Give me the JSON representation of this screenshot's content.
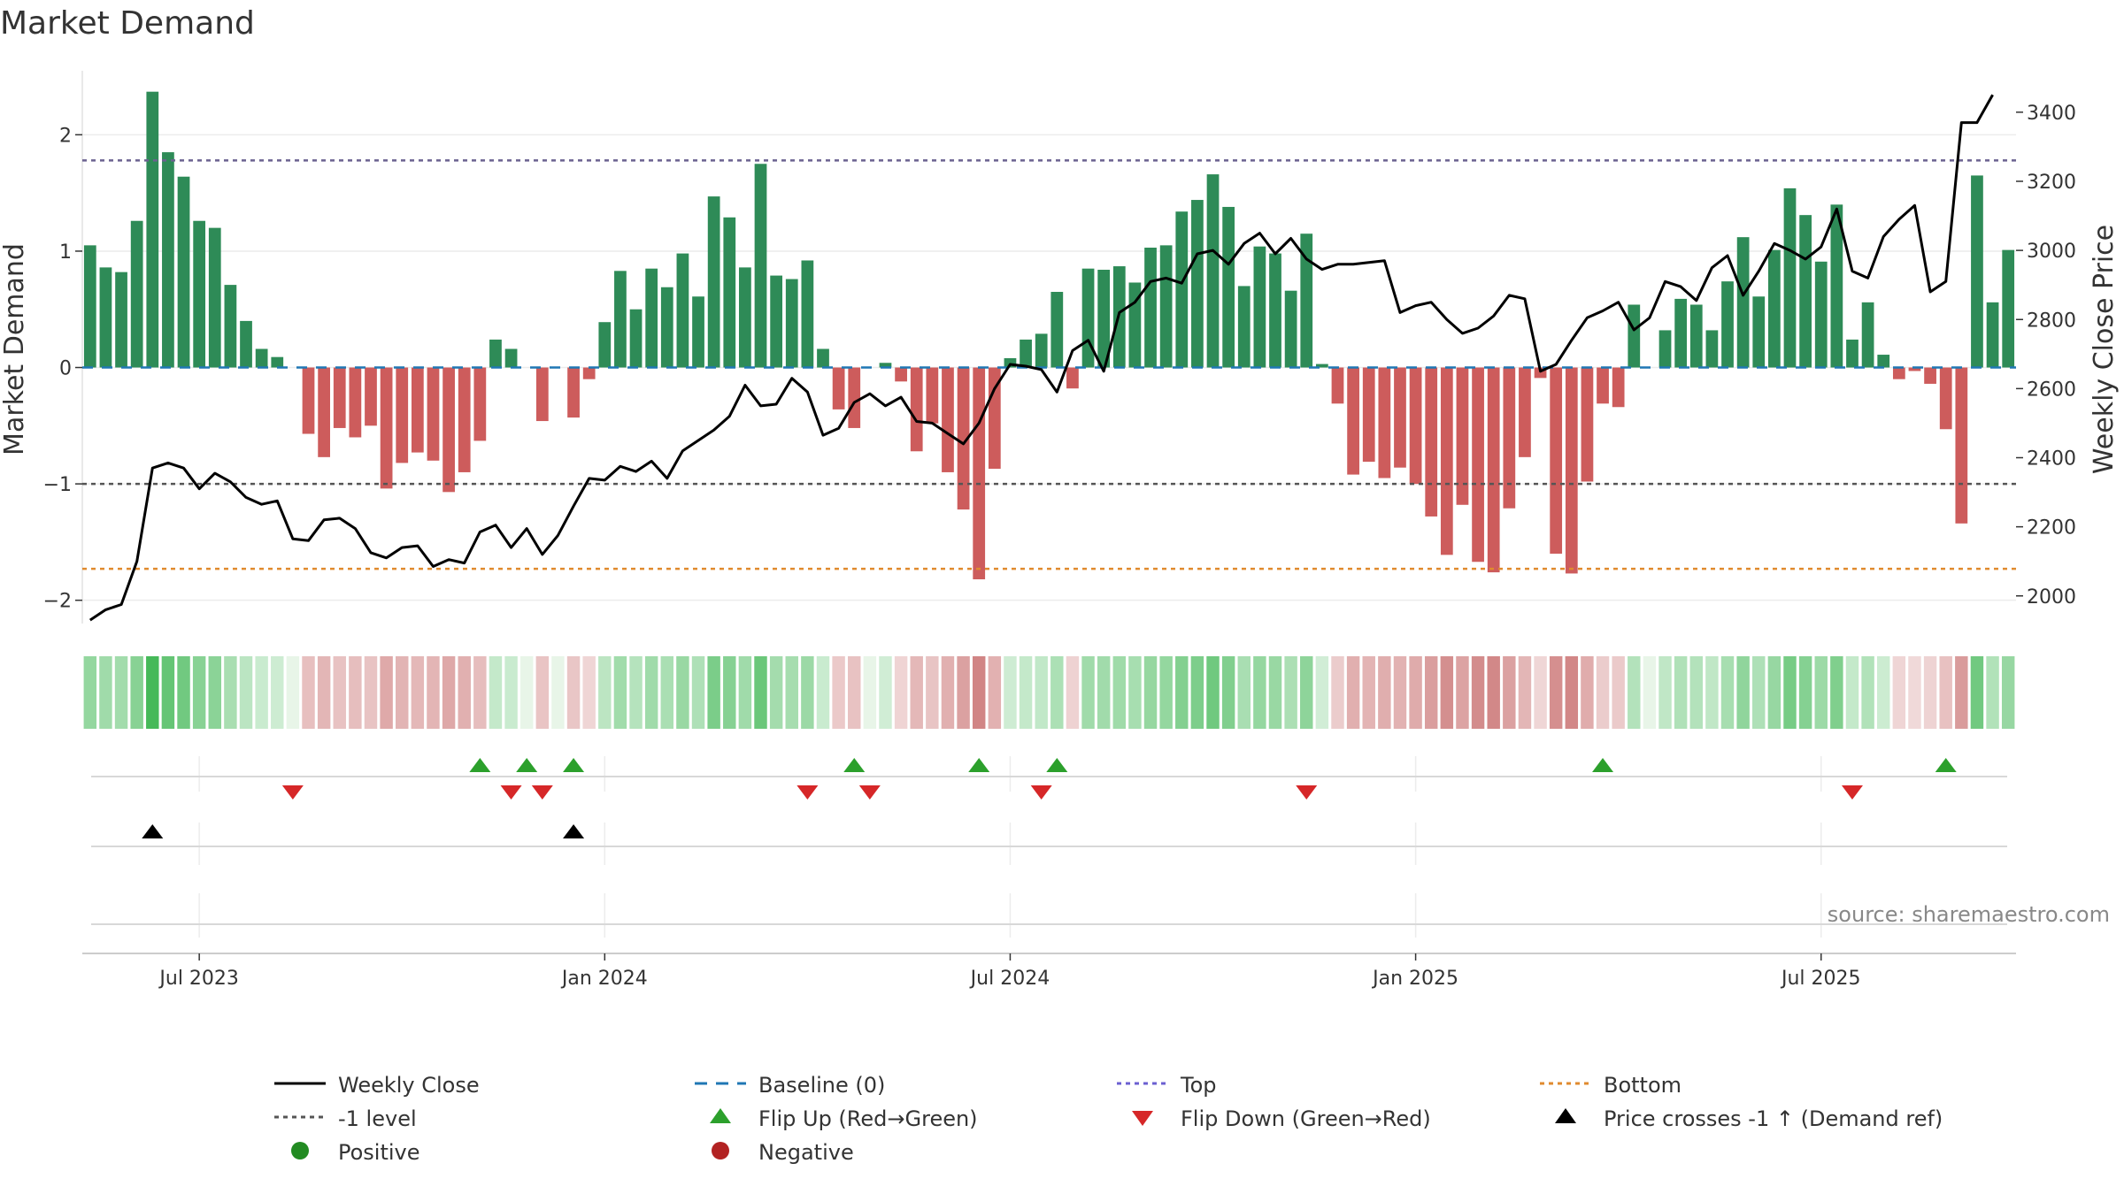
{
  "chart_data": {
    "type": "bar",
    "title": "Market Demand",
    "ylabel_left": "Market Demand",
    "ylabel_right": "Weekly Close Price",
    "ylim_left": [
      -2.2,
      2.55
    ],
    "ylim_right": [
      1920,
      3520
    ],
    "left_ticks": [
      2,
      1,
      0,
      -1,
      -2
    ],
    "left_tick_labels": [
      "2",
      "1",
      "0",
      "−1",
      "−2"
    ],
    "right_ticks": [
      3400,
      3200,
      3000,
      2800,
      2600,
      2400,
      2200,
      2000
    ],
    "x_tick_labels": [
      {
        "week": 7,
        "label": "Jul 2023"
      },
      {
        "week": 33,
        "label": "Jan 2024"
      },
      {
        "week": 59,
        "label": "Jul 2024"
      },
      {
        "week": 85,
        "label": "Jan 2025"
      },
      {
        "week": 111,
        "label": "Jul 2025"
      }
    ],
    "reference_lines": {
      "top": 1.78,
      "minus_one": -1.0,
      "bottom": -1.73,
      "baseline": 0
    },
    "demand": [
      1.05,
      0.86,
      0.82,
      1.26,
      2.37,
      1.85,
      1.64,
      1.26,
      1.2,
      0.71,
      0.4,
      0.16,
      0.09,
      0,
      -0.57,
      -0.77,
      -0.52,
      -0.6,
      -0.5,
      -1.04,
      -0.82,
      -0.73,
      -0.8,
      -1.07,
      -0.9,
      -0.63,
      0.24,
      0.16,
      0,
      -0.46,
      0,
      -0.43,
      -0.1,
      0.39,
      0.83,
      0.5,
      0.85,
      0.69,
      0.98,
      0.61,
      1.47,
      1.29,
      0.86,
      1.75,
      0.79,
      0.76,
      0.92,
      0.16,
      -0.36,
      -0.52,
      0,
      0.04,
      -0.12,
      -0.72,
      -0.48,
      -0.9,
      -1.22,
      -1.82,
      -0.87,
      0.08,
      0.24,
      0.29,
      0.65,
      -0.18,
      0.85,
      0.84,
      0.87,
      0.73,
      1.03,
      1.05,
      1.34,
      1.44,
      1.66,
      1.38,
      0.7,
      1.04,
      0.98,
      0.66,
      1.15,
      0.03,
      -0.31,
      -0.92,
      -0.81,
      -0.95,
      -0.86,
      -1.0,
      -1.28,
      -1.61,
      -1.18,
      -1.67,
      -1.76,
      -1.21,
      -0.77,
      -0.09,
      -1.6,
      -1.77,
      -0.98,
      -0.31,
      -0.34,
      0.54,
      0,
      0.32,
      0.59,
      0.54,
      0.32,
      0.74,
      1.12,
      0.61,
      1.01,
      1.54,
      1.31,
      0.91,
      1.4,
      0.24,
      0.56,
      0.11,
      -0.1,
      -0.03,
      -0.14,
      -0.53,
      -1.34,
      1.65,
      0.56,
      1.01
    ],
    "weekly_close": [
      1930,
      1960,
      1975,
      2100,
      2370,
      2385,
      2370,
      2310,
      2355,
      2330,
      2285,
      2265,
      2275,
      2165,
      2160,
      2220,
      2225,
      2195,
      2125,
      2110,
      2140,
      2145,
      2085,
      2105,
      2095,
      2185,
      2205,
      2140,
      2195,
      2120,
      2175,
      2260,
      2340,
      2335,
      2375,
      2360,
      2390,
      2340,
      2420,
      2450,
      2480,
      2520,
      2610,
      2550,
      2555,
      2630,
      2590,
      2465,
      2485,
      2560,
      2585,
      2550,
      2575,
      2505,
      2500,
      2470,
      2440,
      2500,
      2600,
      2670,
      2665,
      2655,
      2590,
      2710,
      2740,
      2650,
      2820,
      2850,
      2910,
      2920,
      2905,
      2990,
      3000,
      2960,
      3020,
      3050,
      2990,
      3035,
      2975,
      2945,
      2960,
      2960,
      2965,
      2970,
      2820,
      2840,
      2850,
      2800,
      2760,
      2775,
      2810,
      2870,
      2860,
      2650,
      2670,
      2740,
      2805,
      2825,
      2850,
      2770,
      2805,
      2910,
      2895,
      2855,
      2950,
      2985,
      2870,
      2940,
      3020,
      3000,
      2975,
      3010,
      3120,
      2940,
      2920,
      3040,
      3090,
      3130,
      2880,
      2910,
      3370,
      3370,
      3450
    ],
    "legend": [
      {
        "label": "Weekly Close",
        "style": "solid-line",
        "color": "#000000"
      },
      {
        "label": "Baseline (0)",
        "style": "dash-line",
        "color": "#1f77b4"
      },
      {
        "label": "Top",
        "style": "dot-line",
        "color": "#6b5fd1"
      },
      {
        "label": "Bottom",
        "style": "dot-line",
        "color": "#e08a2e"
      },
      {
        "label": "-1 level",
        "style": "dot-line",
        "color": "#555555"
      },
      {
        "label": "Flip Up (Red→Green)",
        "style": "triangle-up",
        "color": "#2ca02c"
      },
      {
        "label": "Flip Down (Green→Red)",
        "style": "triangle-down",
        "color": "#d62728"
      },
      {
        "label": "Price crosses -1 ↑ (Demand ref)",
        "style": "triangle-up",
        "color": "#000000"
      },
      {
        "label": "Positive",
        "style": "circle",
        "color": "#228b22"
      },
      {
        "label": "Negative",
        "style": "circle",
        "color": "#b22222"
      }
    ],
    "flip_up_weeks": [
      25,
      28,
      31,
      49,
      57,
      62,
      97,
      119
    ],
    "flip_down_weeks": [
      13,
      27,
      29,
      46,
      50,
      61,
      78,
      113
    ],
    "price_cross_weeks": [
      4,
      31
    ],
    "colors": {
      "positive_bar": "#2e8b57",
      "negative_bar": "#cd5c5c"
    }
  },
  "source": "source: sharemaestro.com"
}
